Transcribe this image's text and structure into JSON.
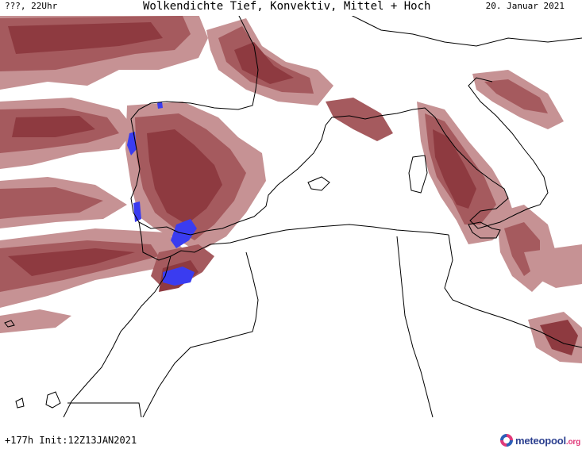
{
  "header": {
    "left_label": "???, 22Uhr",
    "title": "Wolkendichte  Tief, Konvektiv, Mittel + Hoch",
    "date": "20. Januar 2021"
  },
  "footer": {
    "init_label": "+177h Init:12Z13JAN2021"
  },
  "logo": {
    "name": "meteopool",
    "tld": ".org"
  },
  "colors": {
    "cloud_dense": "#8e3a40",
    "cloud_mid": "#a55a5e",
    "cloud_light": "#c69294",
    "convective": "#3a3cf0",
    "coastline": "#000000"
  }
}
